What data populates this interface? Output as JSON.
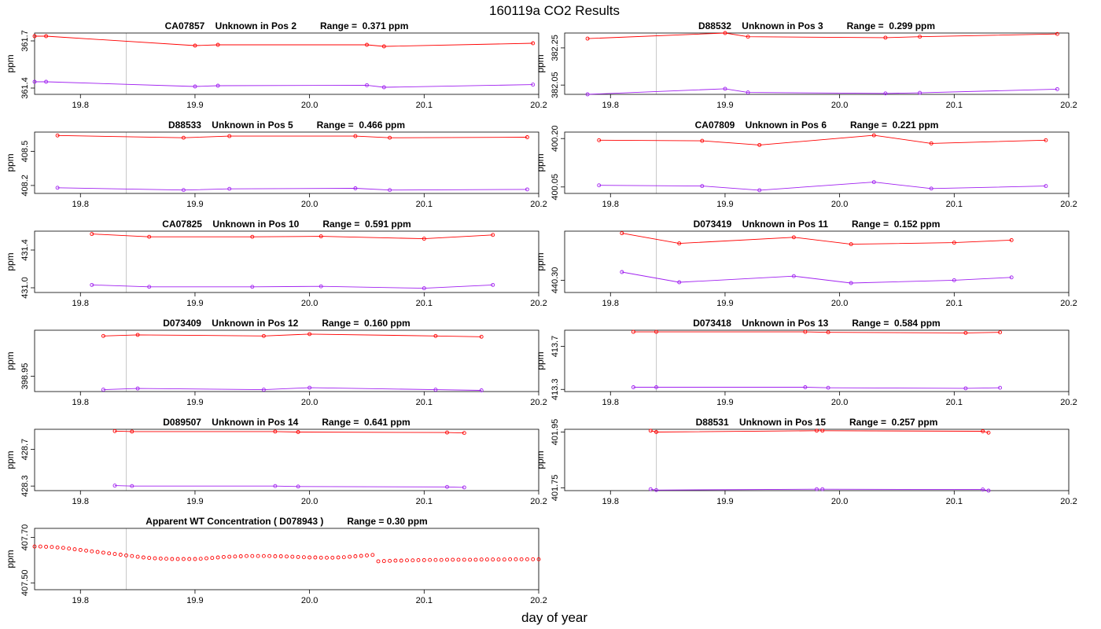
{
  "figure": {
    "title": "160119a  CO2 Results",
    "xlabel": "day of year"
  },
  "chart_data": [
    {
      "type": "line",
      "title": "CA07857    Unknown in Pos 2         Range =  0.371 ppm",
      "ylabel": "ppm",
      "xlim": [
        19.76,
        20.2
      ],
      "ylim": [
        361.36,
        361.75
      ],
      "x_ticks": [
        "19.8",
        "19.9",
        "20.0",
        "20.1",
        "20.2"
      ],
      "y_ticks": [
        "361.4",
        "361.7"
      ],
      "vlines": [
        19.84,
        20.2
      ],
      "colors": [
        "#ff0000",
        "#a020f0"
      ],
      "series": [
        {
          "name": "upper",
          "x": [
            19.76,
            19.77,
            19.9,
            19.92,
            20.05,
            20.065,
            20.195
          ],
          "y": [
            361.73,
            361.73,
            361.67,
            361.675,
            361.675,
            361.665,
            361.685
          ]
        },
        {
          "name": "lower",
          "x": [
            19.76,
            19.77,
            19.9,
            19.92,
            20.05,
            20.065,
            20.195
          ],
          "y": [
            361.44,
            361.44,
            361.41,
            361.415,
            361.418,
            361.405,
            361.422
          ]
        }
      ]
    },
    {
      "type": "line",
      "title": "D88532    Unknown in Pos 3         Range =  0.299 ppm",
      "ylabel": "ppm",
      "xlim": [
        19.76,
        20.2
      ],
      "ylim": [
        382.0,
        382.33
      ],
      "x_ticks": [
        "19.8",
        "19.9",
        "20.0",
        "20.1",
        "20.2"
      ],
      "y_ticks": [
        "382.05",
        "382.25"
      ],
      "vlines": [
        19.84,
        20.2
      ],
      "colors": [
        "#ff0000",
        "#a020f0"
      ],
      "series": [
        {
          "name": "upper",
          "x": [
            19.78,
            19.9,
            19.92,
            20.04,
            20.07,
            20.19
          ],
          "y": [
            382.3,
            382.33,
            382.31,
            382.305,
            382.31,
            382.325
          ]
        },
        {
          "name": "lower",
          "x": [
            19.78,
            19.9,
            19.92,
            20.04,
            20.07,
            20.19
          ],
          "y": [
            382.0,
            382.03,
            382.01,
            382.005,
            382.008,
            382.028
          ]
        }
      ]
    },
    {
      "type": "line",
      "title": "D88533    Unknown in Pos 5         Range =  0.466 ppm",
      "ylabel": "ppm",
      "xlim": [
        19.76,
        20.2
      ],
      "ylim": [
        408.13,
        408.67
      ],
      "x_ticks": [
        "19.8",
        "19.9",
        "20.0",
        "20.1",
        "20.2"
      ],
      "y_ticks": [
        "408.2",
        "408.5"
      ],
      "vlines": [
        19.84,
        20.2
      ],
      "colors": [
        "#ff0000",
        "#a020f0"
      ],
      "series": [
        {
          "name": "upper",
          "x": [
            19.78,
            19.89,
            19.93,
            20.04,
            20.07,
            20.19
          ],
          "y": [
            408.64,
            408.62,
            408.635,
            408.635,
            408.62,
            408.625
          ]
        },
        {
          "name": "lower",
          "x": [
            19.78,
            19.89,
            19.93,
            20.04,
            20.07,
            20.19
          ],
          "y": [
            408.18,
            408.16,
            408.17,
            408.175,
            408.16,
            408.165
          ]
        }
      ]
    },
    {
      "type": "line",
      "title": "CA07809    Unknown in Pos 6         Range =  0.221 ppm",
      "ylabel": "ppm",
      "xlim": [
        19.76,
        20.2
      ],
      "ylim": [
        400.03,
        400.22
      ],
      "x_ticks": [
        "19.8",
        "19.9",
        "20.0",
        "20.1",
        "20.2"
      ],
      "y_ticks": [
        "400.05",
        "400.20"
      ],
      "vlines": [
        19.84,
        20.2
      ],
      "colors": [
        "#ff0000",
        "#a020f0"
      ],
      "series": [
        {
          "name": "upper",
          "x": [
            19.79,
            19.88,
            19.93,
            20.03,
            20.08,
            20.18
          ],
          "y": [
            400.195,
            400.193,
            400.18,
            400.21,
            400.185,
            400.195
          ]
        },
        {
          "name": "lower",
          "x": [
            19.79,
            19.88,
            19.93,
            20.03,
            20.08,
            20.18
          ],
          "y": [
            400.055,
            400.053,
            400.04,
            400.065,
            400.045,
            400.053
          ]
        }
      ]
    },
    {
      "type": "line",
      "title": "CA07825    Unknown in Pos 10         Range =  0.591 ppm",
      "ylabel": "ppm",
      "xlim": [
        19.76,
        20.2
      ],
      "ylim": [
        430.95,
        431.6
      ],
      "x_ticks": [
        "19.8",
        "19.9",
        "20.0",
        "20.1",
        "20.2"
      ],
      "y_ticks": [
        "431.0",
        "431.4"
      ],
      "vlines": [
        19.84,
        20.2
      ],
      "colors": [
        "#ff0000",
        "#a020f0"
      ],
      "series": [
        {
          "name": "upper",
          "x": [
            19.81,
            19.86,
            19.95,
            20.01,
            20.1,
            20.16
          ],
          "y": [
            431.57,
            431.54,
            431.54,
            431.545,
            431.52,
            431.56
          ]
        },
        {
          "name": "lower",
          "x": [
            19.81,
            19.86,
            19.95,
            20.01,
            20.1,
            20.16
          ],
          "y": [
            431.03,
            431.01,
            431.01,
            431.015,
            430.995,
            431.03
          ]
        }
      ]
    },
    {
      "type": "line",
      "title": "D073419    Unknown in Pos 11         Range =  0.152 ppm",
      "ylabel": "ppm",
      "xlim": [
        19.76,
        20.2
      ],
      "ylim": [
        440.27,
        440.42
      ],
      "x_ticks": [
        "19.8",
        "19.9",
        "20.0",
        "20.1",
        "20.2"
      ],
      "y_ticks": [
        "440.30"
      ],
      "vlines": [
        19.84,
        20.2
      ],
      "colors": [
        "#ff0000",
        "#a020f0"
      ],
      "series": [
        {
          "name": "upper",
          "x": [
            19.81,
            19.86,
            19.96,
            20.01,
            20.1,
            20.15
          ],
          "y": [
            440.415,
            440.39,
            440.405,
            440.388,
            440.392,
            440.398
          ]
        },
        {
          "name": "lower",
          "x": [
            19.81,
            19.86,
            19.96,
            20.01,
            20.1,
            20.15
          ],
          "y": [
            440.32,
            440.295,
            440.31,
            440.293,
            440.3,
            440.307
          ]
        }
      ]
    },
    {
      "type": "line",
      "title": "D073409    Unknown in Pos 12         Range =  0.160 ppm",
      "ylabel": "ppm",
      "xlim": [
        19.76,
        20.2
      ],
      "ylim": [
        398.91,
        399.07
      ],
      "x_ticks": [
        "19.8",
        "19.9",
        "20.0",
        "20.1",
        "20.2"
      ],
      "y_ticks": [
        "398.95"
      ],
      "vlines": [
        19.84,
        20.2
      ],
      "colors": [
        "#ff0000",
        "#a020f0"
      ],
      "series": [
        {
          "name": "upper",
          "x": [
            19.82,
            19.85,
            19.96,
            20.0,
            20.11,
            20.15
          ],
          "y": [
            399.055,
            399.058,
            399.055,
            399.06,
            399.055,
            399.053
          ]
        },
        {
          "name": "lower",
          "x": [
            19.82,
            19.85,
            19.96,
            20.0,
            20.11,
            20.15
          ],
          "y": [
            398.915,
            398.918,
            398.915,
            398.92,
            398.915,
            398.913
          ]
        }
      ]
    },
    {
      "type": "line",
      "title": "D073418    Unknown in Pos 13         Range =  0.584 ppm",
      "ylabel": "ppm",
      "xlim": [
        19.76,
        20.2
      ],
      "ylim": [
        413.28,
        413.85
      ],
      "x_ticks": [
        "19.8",
        "19.9",
        "20.0",
        "20.1",
        "20.2"
      ],
      "y_ticks": [
        "413.3",
        "413.7"
      ],
      "vlines": [
        19.84,
        20.2
      ],
      "colors": [
        "#ff0000",
        "#a020f0"
      ],
      "series": [
        {
          "name": "upper",
          "x": [
            19.82,
            19.84,
            19.97,
            19.99,
            20.11,
            20.14
          ],
          "y": [
            413.835,
            413.835,
            413.835,
            413.83,
            413.825,
            413.83
          ]
        },
        {
          "name": "lower",
          "x": [
            19.82,
            19.84,
            19.97,
            19.99,
            20.11,
            20.14
          ],
          "y": [
            413.32,
            413.32,
            413.32,
            413.315,
            413.31,
            413.315
          ]
        }
      ]
    },
    {
      "type": "line",
      "title": "D089507    Unknown in Pos 14         Range =  0.641 ppm",
      "ylabel": "ppm",
      "xlim": [
        19.76,
        20.2
      ],
      "ylim": [
        428.25,
        428.92
      ],
      "x_ticks": [
        "19.8",
        "19.9",
        "20.0",
        "20.1",
        "20.2"
      ],
      "y_ticks": [
        "428.3",
        "428.7"
      ],
      "vlines": [
        19.84,
        20.2
      ],
      "colors": [
        "#ff0000",
        "#a020f0"
      ],
      "series": [
        {
          "name": "upper",
          "x": [
            19.83,
            19.845,
            19.97,
            19.99,
            20.12,
            20.135
          ],
          "y": [
            428.9,
            428.895,
            428.895,
            428.89,
            428.885,
            428.88
          ]
        },
        {
          "name": "lower",
          "x": [
            19.83,
            19.845,
            19.97,
            19.99,
            20.12,
            20.135
          ],
          "y": [
            428.305,
            428.3,
            428.3,
            428.295,
            428.29,
            428.285
          ]
        }
      ]
    },
    {
      "type": "line",
      "title": "D88531    Unknown in Pos 15         Range =  0.257 ppm",
      "ylabel": "ppm",
      "xlim": [
        19.76,
        20.2
      ],
      "ylim": [
        401.74,
        401.96
      ],
      "x_ticks": [
        "19.8",
        "19.9",
        "20.0",
        "20.1",
        "20.2"
      ],
      "y_ticks": [
        "401.75",
        "401.95"
      ],
      "vlines": [
        19.84,
        20.2
      ],
      "colors": [
        "#ff0000",
        "#a020f0"
      ],
      "series": [
        {
          "name": "upper",
          "x": [
            19.835,
            19.84,
            19.98,
            19.985,
            20.125,
            20.13
          ],
          "y": [
            401.955,
            401.95,
            401.955,
            401.955,
            401.953,
            401.948
          ]
        },
        {
          "name": "lower",
          "x": [
            19.835,
            19.84,
            19.98,
            19.985,
            20.125,
            20.13
          ],
          "y": [
            401.745,
            401.742,
            401.745,
            401.745,
            401.744,
            401.74
          ]
        }
      ]
    },
    {
      "type": "scatter",
      "title": "Apparent WT Concentration ( D078943 )         Range = 0.30 ppm",
      "ylabel": "ppm",
      "xlim": [
        19.76,
        20.2
      ],
      "ylim": [
        407.47,
        407.74
      ],
      "x_ticks": [
        "19.8",
        "19.9",
        "20.0",
        "20.1",
        "20.2"
      ],
      "y_ticks": [
        "407.50",
        "407.70"
      ],
      "vlines": [
        19.84,
        20.2
      ],
      "colors": [
        "#ff0000"
      ],
      "series": [
        {
          "name": "WT",
          "x": [
            19.76,
            19.765,
            19.77,
            19.775,
            19.78,
            19.785,
            19.79,
            19.795,
            19.8,
            19.805,
            19.81,
            19.815,
            19.82,
            19.825,
            19.83,
            19.835,
            19.84,
            19.845,
            19.85,
            19.855,
            19.86,
            19.865,
            19.87,
            19.875,
            19.88,
            19.885,
            19.89,
            19.895,
            19.9,
            19.905,
            19.91,
            19.915,
            19.92,
            19.925,
            19.93,
            19.935,
            19.94,
            19.945,
            19.95,
            19.955,
            19.96,
            19.965,
            19.97,
            19.975,
            19.98,
            19.985,
            19.99,
            19.995,
            20.0,
            20.005,
            20.01,
            20.015,
            20.02,
            20.025,
            20.03,
            20.035,
            20.04,
            20.045,
            20.05,
            20.055,
            20.06,
            20.065,
            20.07,
            20.075,
            20.08,
            20.085,
            20.09,
            20.095,
            20.1,
            20.105,
            20.11,
            20.115,
            20.12,
            20.125,
            20.13,
            20.135,
            20.14,
            20.145,
            20.15,
            20.155,
            20.16,
            20.165,
            20.17,
            20.175,
            20.18,
            20.185,
            20.19,
            20.195,
            20.2
          ],
          "y": [
            407.66,
            407.66,
            407.659,
            407.658,
            407.656,
            407.654,
            407.651,
            407.648,
            407.645,
            407.642,
            407.639,
            407.636,
            407.633,
            407.63,
            407.627,
            407.624,
            407.621,
            407.618,
            407.615,
            407.612,
            407.61,
            407.608,
            407.607,
            407.606,
            407.605,
            407.605,
            407.605,
            407.605,
            407.605,
            407.606,
            407.608,
            407.61,
            407.612,
            407.614,
            407.615,
            407.616,
            407.617,
            407.618,
            407.618,
            407.618,
            407.618,
            407.618,
            407.617,
            407.617,
            407.616,
            407.615,
            407.614,
            407.613,
            407.612,
            407.612,
            407.611,
            407.611,
            407.611,
            407.612,
            407.613,
            407.615,
            407.617,
            407.619,
            407.621,
            407.623,
            407.595,
            407.596,
            407.597,
            407.598,
            407.598,
            407.599,
            407.599,
            407.6,
            407.6,
            407.601,
            407.601,
            407.601,
            407.602,
            407.602,
            407.602,
            407.602,
            407.602,
            407.602,
            407.603,
            407.603,
            407.603,
            407.603,
            407.603,
            407.604,
            407.604,
            407.604,
            407.604,
            407.604,
            407.604
          ]
        }
      ]
    }
  ]
}
